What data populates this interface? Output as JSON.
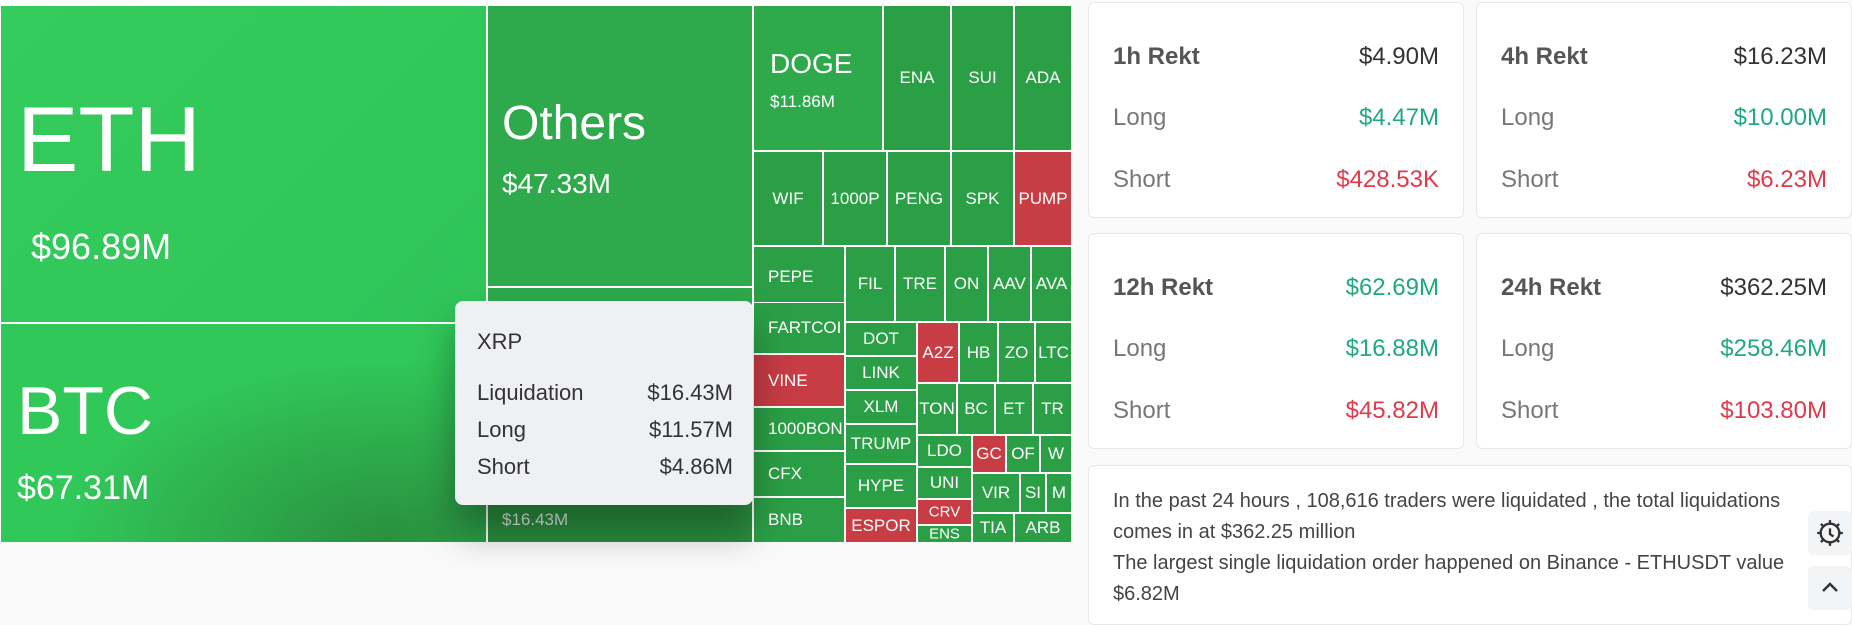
{
  "treemap": {
    "tiles": [
      {
        "id": "eth",
        "symbol": "ETH",
        "value": "$96.89M",
        "color": "#31c85a"
      },
      {
        "id": "btc",
        "symbol": "BTC",
        "value": "$67.31M",
        "color": "#31c85a"
      },
      {
        "id": "others",
        "symbol": "Others",
        "value": "$47.33M",
        "color": "#2ea94c"
      },
      {
        "id": "xrp",
        "symbol": "XRP",
        "value": "$16.43M",
        "color": "#2ea94c"
      },
      {
        "id": "doge",
        "symbol": "DOGE",
        "value": "$11.86M",
        "color": "#2ea94c"
      },
      {
        "id": "ena",
        "symbol": "ENA",
        "color": "#2b9f46"
      },
      {
        "id": "sui",
        "symbol": "SUI",
        "color": "#2b9f46"
      },
      {
        "id": "ada",
        "symbol": "ADA",
        "color": "#2b9f46"
      },
      {
        "id": "wif",
        "symbol": "WIF",
        "color": "#2b9f46"
      },
      {
        "id": "1000p",
        "symbol": "1000P",
        "color": "#2b9f46"
      },
      {
        "id": "peng",
        "symbol": "PENG",
        "color": "#2b9f46"
      },
      {
        "id": "spk",
        "symbol": "SPK",
        "color": "#2b9f46"
      },
      {
        "id": "pump",
        "symbol": "PUMP",
        "color": "#c83c44"
      },
      {
        "id": "pepe",
        "symbol": "PEPE",
        "color": "#2b9f46"
      },
      {
        "id": "fil",
        "symbol": "FIL",
        "color": "#2b9f46"
      },
      {
        "id": "tre",
        "symbol": "TRE",
        "color": "#2b9f46"
      },
      {
        "id": "on",
        "symbol": "ON",
        "color": "#2b9f46"
      },
      {
        "id": "aav",
        "symbol": "AAV",
        "color": "#2b9f46"
      },
      {
        "id": "ava",
        "symbol": "AVA",
        "color": "#2b9f46"
      },
      {
        "id": "fartcoin",
        "symbol": "FARTCOI",
        "color": "#2b9f46"
      },
      {
        "id": "dot",
        "symbol": "DOT",
        "color": "#2b9f46"
      },
      {
        "id": "a2z",
        "symbol": "A2Z",
        "color": "#c83c44"
      },
      {
        "id": "hb",
        "symbol": "HB",
        "color": "#2b9f46"
      },
      {
        "id": "zo",
        "symbol": "ZO",
        "color": "#2b9f46"
      },
      {
        "id": "ltc",
        "symbol": "LTC",
        "color": "#2b9f46"
      },
      {
        "id": "vine",
        "symbol": "VINE",
        "color": "#c83c44"
      },
      {
        "id": "link",
        "symbol": "LINK",
        "color": "#2b9f46"
      },
      {
        "id": "xlm",
        "symbol": "XLM",
        "color": "#2b9f46"
      },
      {
        "id": "ton",
        "symbol": "TON",
        "color": "#2b9f46"
      },
      {
        "id": "bc",
        "symbol": "BC",
        "color": "#2b9f46"
      },
      {
        "id": "et",
        "symbol": "ET",
        "color": "#2b9f46"
      },
      {
        "id": "tr",
        "symbol": "TR",
        "color": "#2b9f46"
      },
      {
        "id": "1000bon",
        "symbol": "1000BON",
        "color": "#2b9f46"
      },
      {
        "id": "trump",
        "symbol": "TRUMP",
        "color": "#2b9f46"
      },
      {
        "id": "ldo",
        "symbol": "LDO",
        "color": "#2b9f46"
      },
      {
        "id": "gc",
        "symbol": "GC",
        "color": "#c83c44"
      },
      {
        "id": "of",
        "symbol": "OF",
        "color": "#2b9f46"
      },
      {
        "id": "w",
        "symbol": "W",
        "color": "#2b9f46"
      },
      {
        "id": "cfx",
        "symbol": "CFX",
        "color": "#2b9f46"
      },
      {
        "id": "hype",
        "symbol": "HYPE",
        "color": "#2b9f46"
      },
      {
        "id": "uni",
        "symbol": "UNI",
        "color": "#2b9f46"
      },
      {
        "id": "crv",
        "symbol": "CRV",
        "color": "#c83c44"
      },
      {
        "id": "vir",
        "symbol": "VIR",
        "color": "#2b9f46"
      },
      {
        "id": "si",
        "symbol": "SI",
        "color": "#2b9f46"
      },
      {
        "id": "m",
        "symbol": "M",
        "color": "#2b9f46"
      },
      {
        "id": "bnb",
        "symbol": "BNB",
        "color": "#2b9f46"
      },
      {
        "id": "espor",
        "symbol": "ESPOR",
        "color": "#c83c44"
      },
      {
        "id": "ens",
        "symbol": "ENS",
        "color": "#2b9f46"
      },
      {
        "id": "tia",
        "symbol": "TIA",
        "color": "#2b9f46"
      },
      {
        "id": "arb",
        "symbol": "ARB",
        "color": "#2b9f46"
      }
    ]
  },
  "tooltip": {
    "title": "XRP",
    "rows": [
      {
        "label": "Liquidation",
        "value": "$16.43M"
      },
      {
        "label": "Long",
        "value": "$11.57M"
      },
      {
        "label": "Short",
        "value": "$4.86M"
      }
    ]
  },
  "cards": [
    {
      "title": "1h Rekt",
      "total": "$4.90M",
      "total_color": "default",
      "long_label": "Long",
      "long": "$4.47M",
      "short_label": "Short",
      "short": "$428.53K"
    },
    {
      "title": "4h Rekt",
      "total": "$16.23M",
      "total_color": "default",
      "long_label": "Long",
      "long": "$10.00M",
      "short_label": "Short",
      "short": "$6.23M"
    },
    {
      "title": "12h Rekt",
      "total": "$62.69M",
      "total_color": "green",
      "long_label": "Long",
      "long": "$16.88M",
      "short_label": "Short",
      "short": "$45.82M"
    },
    {
      "title": "24h Rekt",
      "total": "$362.25M",
      "total_color": "default",
      "long_label": "Long",
      "long": "$258.46M",
      "short_label": "Short",
      "short": "$103.80M"
    }
  ],
  "summary": {
    "line1": "In the past 24 hours , 108,616 traders were liquidated , the total liquidations comes in at $362.25 million",
    "line2": "The largest single liquidation order happened on Binance - ETHUSDT value $6.82M"
  },
  "side_buttons": {
    "theme_icon": "gear-icon",
    "scroll_icon": "chevron-up-icon"
  }
}
